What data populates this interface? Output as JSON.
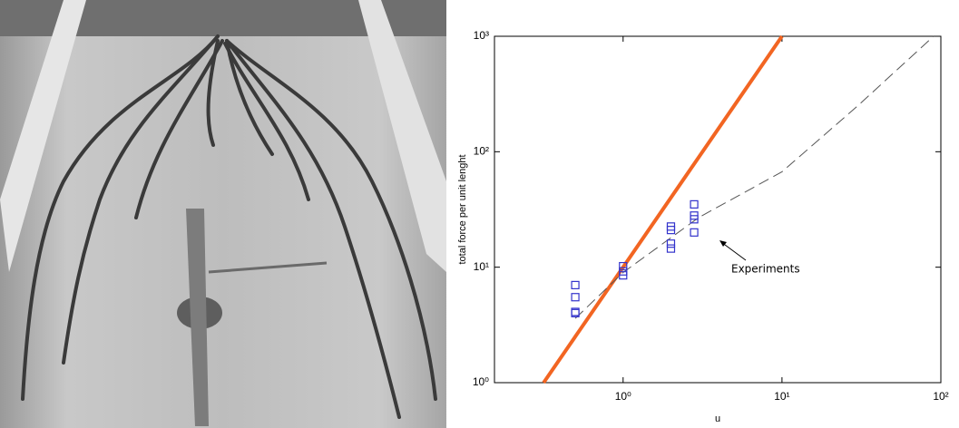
{
  "chart_data": {
    "type": "line",
    "xlabel": "u",
    "ylabel": "total force per unit lenght",
    "annotation": "Experiments",
    "xscale": "log",
    "yscale": "log",
    "xlim": [
      0.155,
      100
    ],
    "ylim": [
      1,
      1000
    ],
    "xticks": [
      {
        "value": 1,
        "label": "10⁰"
      },
      {
        "value": 10,
        "label": "10¹"
      },
      {
        "value": 100,
        "label": "10²"
      }
    ],
    "yticks": [
      {
        "value": 1,
        "label": "10⁰"
      },
      {
        "value": 10,
        "label": "10¹"
      },
      {
        "value": 100,
        "label": "10²"
      },
      {
        "value": 1000,
        "label": "10³"
      }
    ],
    "series": [
      {
        "type": "line",
        "color": "#f26522",
        "style": "solid",
        "x": [
          0.316,
          10
        ],
        "values": [
          1,
          1000
        ]
      },
      {
        "type": "line",
        "color": "#555555",
        "style": "dashed",
        "x": [
          0.5,
          1,
          2,
          3,
          10,
          30,
          90
        ],
        "values": [
          3.6,
          9,
          18,
          27,
          67,
          250,
          1000
        ]
      },
      {
        "type": "scatter",
        "color": "#3333cc",
        "marker": "square",
        "x": [
          0.5,
          0.5,
          0.5,
          0.5,
          1,
          1,
          1,
          2,
          2,
          2,
          2,
          2.8,
          2.8,
          2.8,
          2.8
        ],
        "values": [
          4,
          4.1,
          5.5,
          7,
          8.5,
          9.2,
          10.2,
          14.5,
          16,
          21,
          22.5,
          20,
          26,
          28,
          35
        ]
      }
    ]
  }
}
